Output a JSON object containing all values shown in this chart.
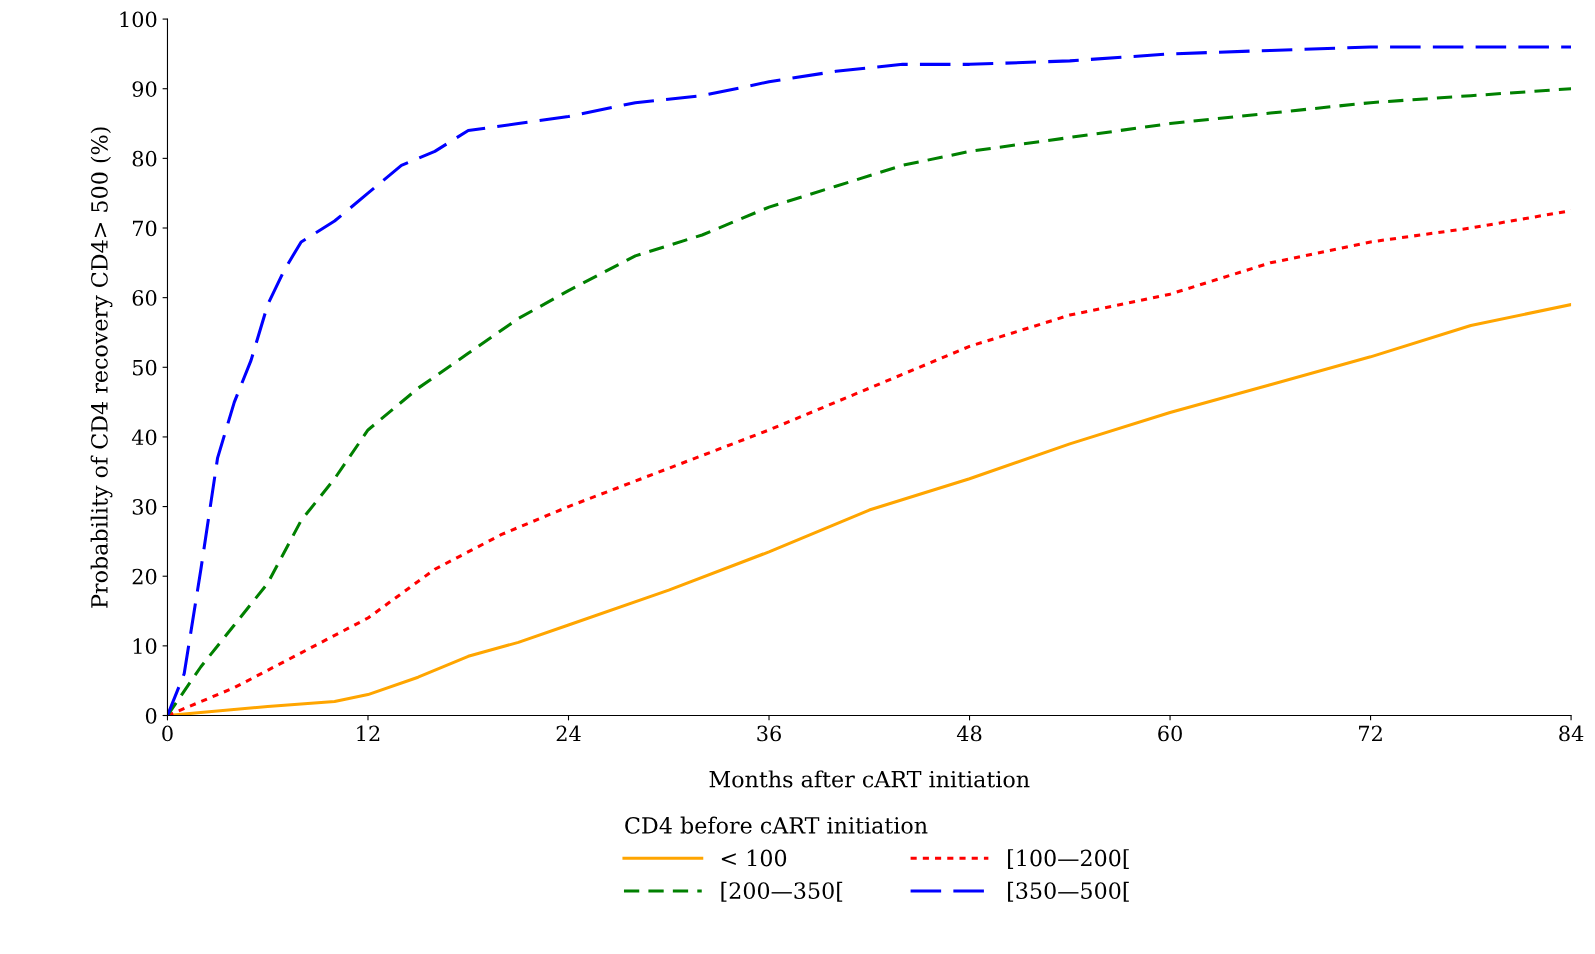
{
  "chart_data": {
    "type": "line",
    "xlabel": "Months after cART initiation",
    "ylabel": "Probability of CD4 recovery CD4> 500 (%)",
    "legend_title": "CD4 before cART initiation",
    "legend": "bottom",
    "xlim": [
      0,
      84
    ],
    "xticks": [
      0,
      12,
      24,
      36,
      48,
      60,
      72,
      84
    ],
    "ylim": [
      0,
      100
    ],
    "yticks": [
      0,
      10,
      20,
      30,
      40,
      50,
      60,
      70,
      80,
      90,
      100
    ],
    "grid": false,
    "series": [
      {
        "name": "< 100",
        "color": "#ffa500",
        "line_style": "solid",
        "x": [
          0,
          6,
          10,
          12,
          15,
          18,
          21,
          24,
          30,
          36,
          42,
          48,
          54,
          60,
          66,
          72,
          78,
          84
        ],
        "values": [
          0,
          1.3,
          2,
          3,
          5.5,
          8.5,
          10.5,
          13,
          18,
          23.5,
          29.5,
          34,
          39,
          43.5,
          47.5,
          51.5,
          56,
          59
        ]
      },
      {
        "name": "[100—200[",
        "color": "#ff0000",
        "line_style": "dotted",
        "x": [
          0,
          4,
          8,
          12,
          16,
          20,
          24,
          30,
          36,
          42,
          48,
          54,
          60,
          66,
          72,
          78,
          84
        ],
        "values": [
          0,
          4,
          9,
          14,
          21,
          26,
          30,
          35.5,
          41,
          47,
          53,
          57.5,
          60.5,
          65,
          68,
          70,
          72.5
        ]
      },
      {
        "name": "[200—350[",
        "color": "#008000",
        "line_style": "dashed",
        "x": [
          0,
          2,
          4,
          6,
          8,
          10,
          12,
          15,
          18,
          21,
          24,
          28,
          32,
          36,
          40,
          44,
          48,
          54,
          60,
          66,
          72,
          78,
          84
        ],
        "values": [
          0,
          7,
          13,
          19,
          28,
          34,
          41,
          47,
          52,
          57,
          61,
          66,
          69,
          73,
          76,
          79,
          81,
          83,
          85,
          86.5,
          88,
          89,
          90
        ]
      },
      {
        "name": "[350—500[",
        "color": "#0000ff",
        "line_style": "longdash",
        "x": [
          0,
          1,
          2,
          3,
          4,
          5,
          6,
          7,
          8,
          10,
          12,
          14,
          16,
          18,
          21,
          24,
          28,
          32,
          36,
          40,
          44,
          48,
          54,
          60,
          66,
          72,
          78,
          84
        ],
        "values": [
          0,
          6,
          21,
          37,
          45,
          51,
          59,
          64,
          68,
          71,
          75,
          79,
          81,
          84,
          85,
          86,
          88,
          89,
          91,
          92.5,
          93.5,
          93.5,
          94,
          95,
          95.5,
          96,
          96,
          96
        ]
      }
    ]
  }
}
